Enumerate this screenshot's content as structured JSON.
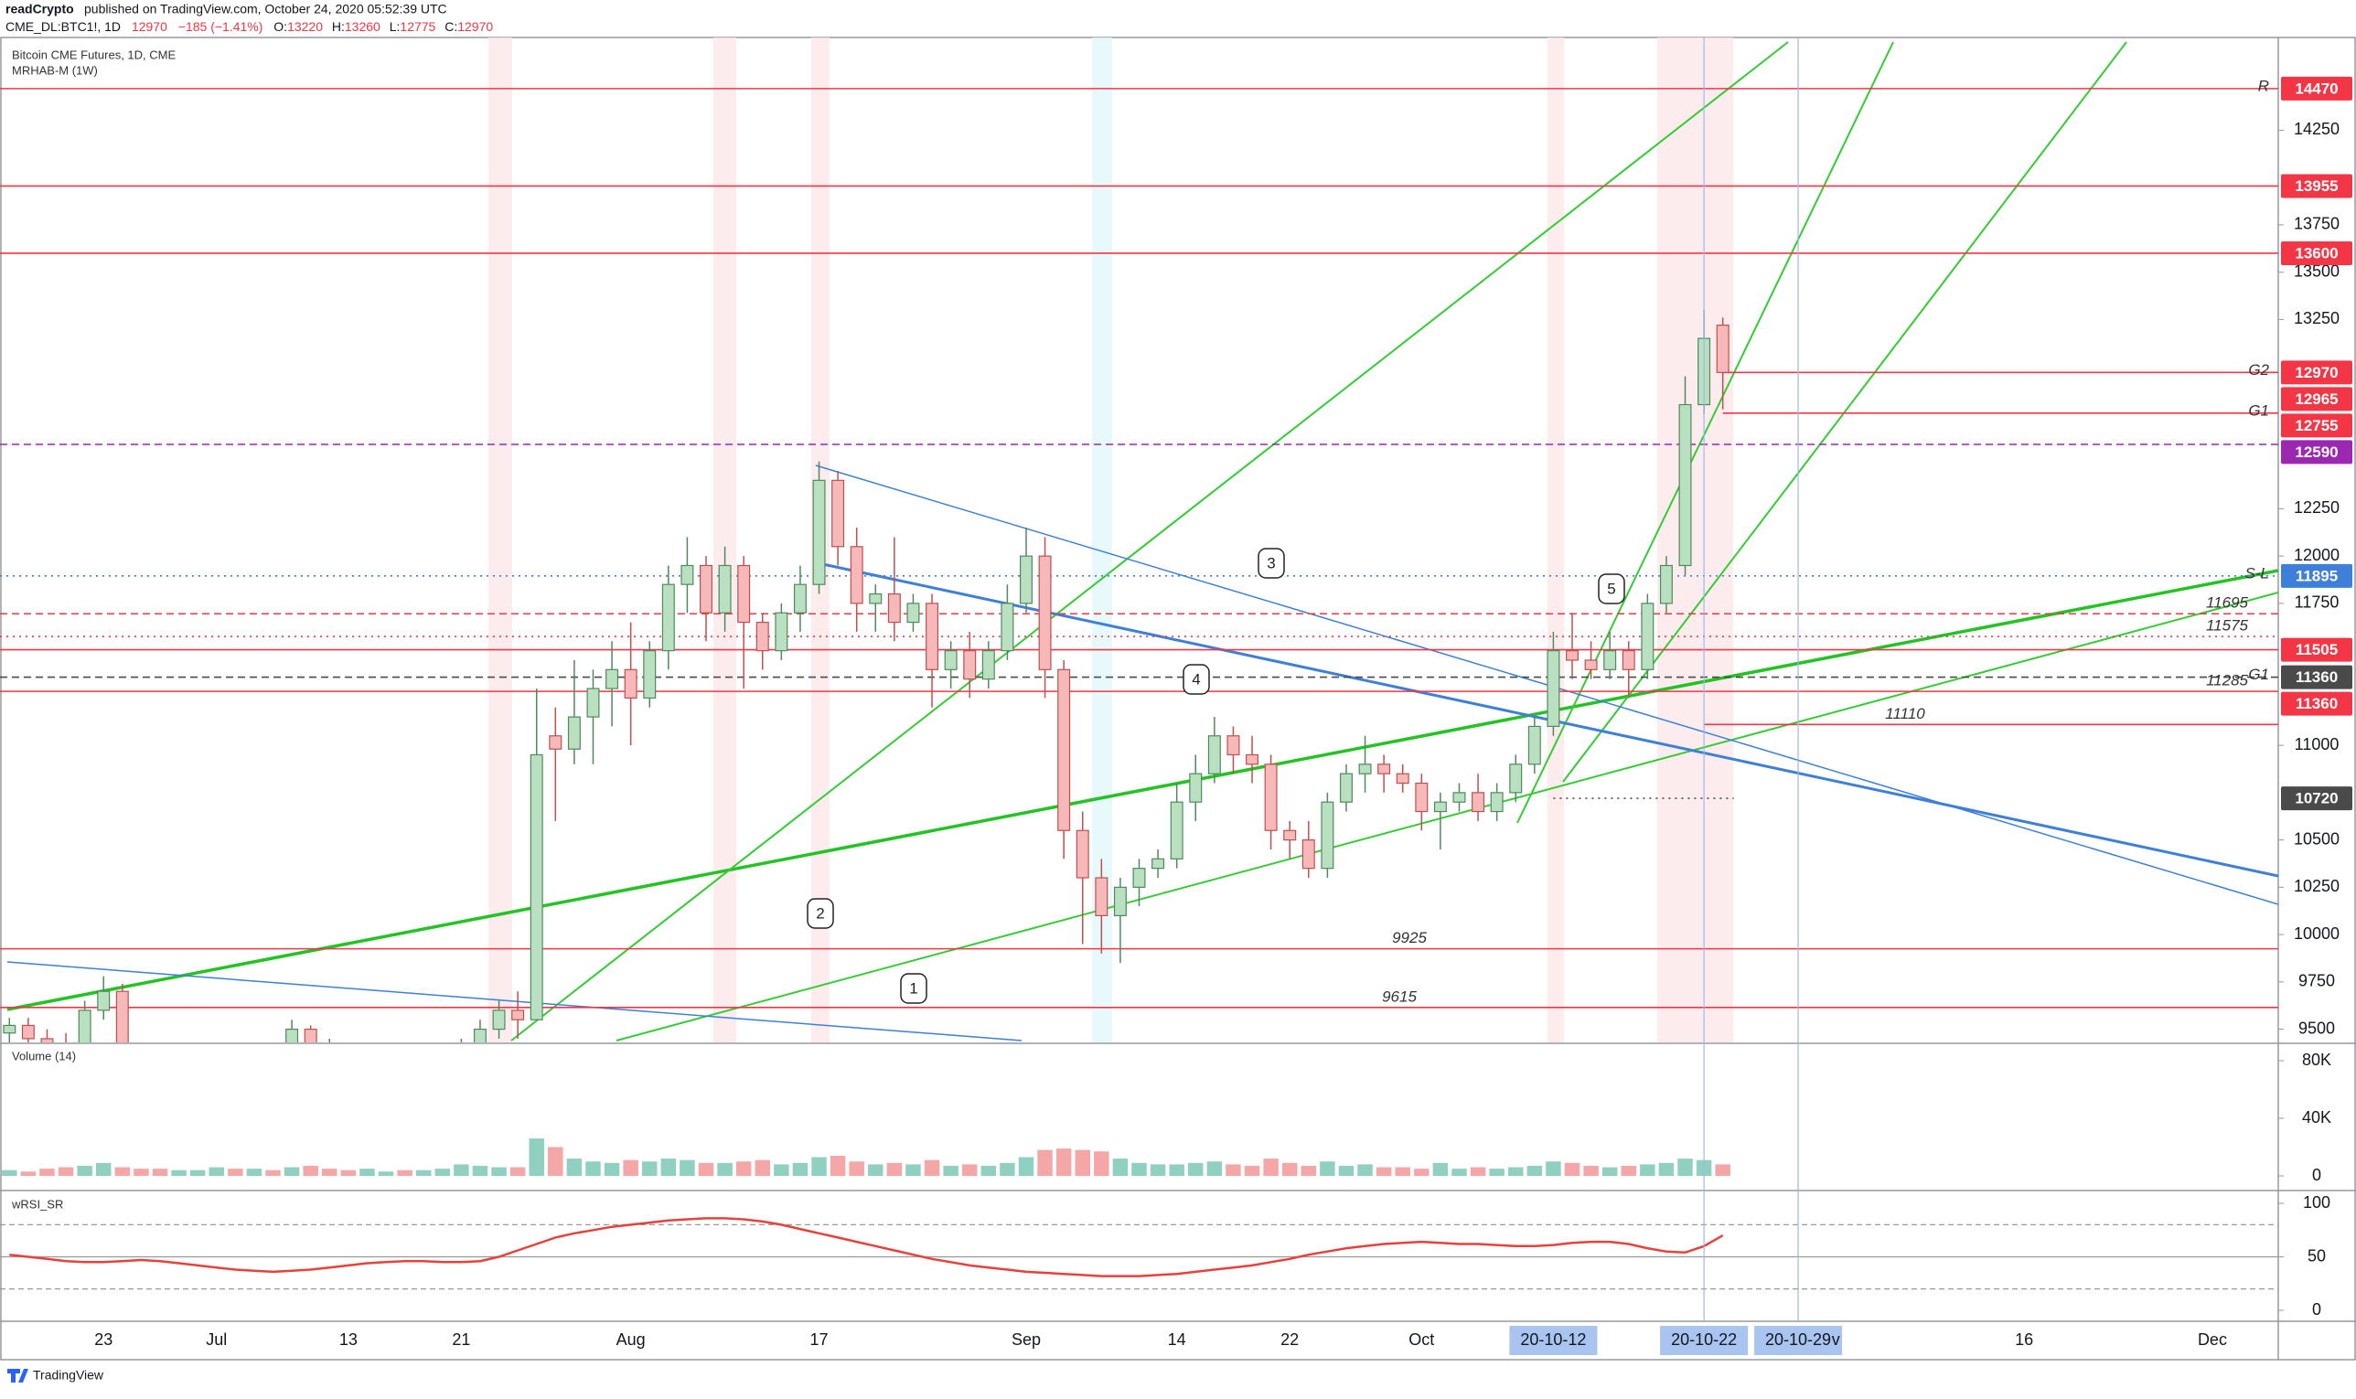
{
  "header": {
    "author": "readCrypto",
    "published": "published on TradingView.com, October 24, 2020 05:52:39 UTC",
    "symbol": "CME_DL:BTC1!, 1D",
    "change": "−185 (−1.41%)",
    "ohlc_prefixes": [
      "O:",
      "H:",
      "L:",
      "C:"
    ]
  },
  "footer": {
    "brand": "TradingView"
  },
  "chart_data": {
    "type": "candlestick",
    "title": "Bitcoin CME Futures, 1D, CME",
    "subtitle": "MRHAB-M (1W)",
    "categories": [
      null,
      null,
      null,
      null,
      null,
      "23",
      null,
      null,
      null,
      null,
      null,
      "Jul",
      null,
      null,
      null,
      null,
      null,
      null,
      "13",
      null,
      null,
      null,
      null,
      null,
      "21",
      null,
      null,
      null,
      null,
      null,
      null,
      null,
      null,
      "Aug",
      null,
      null,
      null,
      null,
      null,
      null,
      null,
      null,
      null,
      "17",
      null,
      null,
      null,
      null,
      null,
      null,
      null,
      null,
      null,
      null,
      "Sep",
      null,
      null,
      null,
      null,
      null,
      null,
      null,
      "14",
      null,
      null,
      null,
      null,
      null,
      "22",
      null,
      null,
      null,
      null,
      null,
      null,
      "Oct",
      null,
      null,
      null,
      null,
      null,
      null,
      "20-10-12",
      null,
      null,
      null,
      null,
      null,
      null,
      null,
      "20-10-22",
      null,
      null,
      null,
      null,
      "20-10-29",
      null,
      "v",
      null,
      null,
      null,
      null,
      null,
      null,
      null,
      null,
      null,
      "16",
      null,
      null,
      null,
      null,
      null,
      null,
      null,
      null,
      null,
      "Dec",
      null,
      null,
      null
    ],
    "open": [
      9480,
      9520,
      9450,
      9400,
      9300,
      9600,
      9700,
      9350,
      9250,
      9100,
      9150,
      9150,
      9200,
      9100,
      9300,
      9300,
      9500,
      9420,
      9300,
      9250,
      9250,
      9280,
      9150,
      9170,
      9200,
      9400,
      9500,
      9600,
      9550,
      11050,
      10980,
      11150,
      11300,
      11400,
      11250,
      11500,
      11850,
      11950,
      11700,
      11950,
      11650,
      11500,
      11700,
      11850,
      12400,
      12050,
      11750,
      11800,
      11650,
      11750,
      11400,
      11500,
      11350,
      11500,
      11750,
      12000,
      11400,
      10550,
      10300,
      10100,
      10250,
      10350,
      10400,
      10700,
      10850,
      11050,
      10950,
      10900,
      10550,
      10500,
      10350,
      10700,
      10850,
      10900,
      10850,
      10800,
      10650,
      10700,
      10750,
      10650,
      10750,
      10900,
      11100,
      11500,
      11450,
      11400,
      11500,
      11400,
      11750,
      11950,
      12800,
      13220,
      null,
      null,
      null,
      null,
      null,
      null,
      null,
      null,
      null,
      null,
      null,
      null,
      null,
      null,
      null,
      null,
      null,
      null,
      null,
      null,
      null,
      null,
      null,
      null,
      null,
      null,
      null,
      null,
      null
    ],
    "high": [
      9560,
      9560,
      9500,
      9480,
      9650,
      9780,
      9740,
      9400,
      9300,
      9200,
      9200,
      9250,
      9250,
      9350,
      9350,
      9550,
      9520,
      9450,
      9350,
      9300,
      9300,
      9300,
      9200,
      9250,
      9450,
      9550,
      9650,
      9700,
      11300,
      11200,
      11450,
      11400,
      11550,
      11650,
      11550,
      11950,
      12100,
      12000,
      12050,
      12000,
      11700,
      11750,
      11950,
      12500,
      12450,
      12150,
      11850,
      12100,
      11800,
      11800,
      11550,
      11600,
      11550,
      11850,
      12150,
      12100,
      11450,
      10650,
      10400,
      10300,
      10400,
      10450,
      10800,
      10950,
      11150,
      11100,
      11050,
      10950,
      10600,
      10600,
      10750,
      10900,
      11050,
      10950,
      10900,
      10850,
      10750,
      10800,
      10850,
      10800,
      10950,
      11150,
      11600,
      11700,
      11550,
      11600,
      11550,
      11800,
      12000,
      12950,
      13300,
      13260,
      null,
      null,
      null,
      null,
      null,
      null,
      null,
      null,
      null,
      null,
      null,
      null,
      null,
      null,
      null,
      null,
      null,
      null,
      null,
      null,
      null,
      null,
      null,
      null,
      null,
      null,
      null,
      null,
      null
    ],
    "low": [
      9420,
      9400,
      9350,
      9250,
      9280,
      9550,
      9300,
      9200,
      9050,
      9050,
      9100,
      9100,
      9050,
      9080,
      9200,
      9280,
      9380,
      9250,
      9200,
      9150,
      9200,
      9100,
      9100,
      9150,
      9180,
      9350,
      9450,
      9450,
      9550,
      10600,
      10900,
      10900,
      11100,
      11000,
      11200,
      11400,
      11700,
      11550,
      11600,
      11300,
      11400,
      11450,
      11600,
      11800,
      11950,
      11600,
      11600,
      11550,
      11600,
      11200,
      11300,
      11250,
      11300,
      11450,
      11700,
      11250,
      10400,
      9950,
      9900,
      9850,
      10150,
      10300,
      10350,
      10600,
      10800,
      10850,
      10800,
      10450,
      10400,
      10300,
      10300,
      10650,
      10750,
      10750,
      10750,
      10550,
      10450,
      10650,
      10600,
      10600,
      10700,
      10850,
      11050,
      11350,
      11350,
      11350,
      11250,
      11350,
      11700,
      11900,
      12750,
      12775,
      null,
      null,
      null,
      null,
      null,
      null,
      null,
      null,
      null,
      null,
      null,
      null,
      null,
      null,
      null,
      null,
      null,
      null,
      null,
      null,
      null,
      null,
      null,
      null,
      null,
      null,
      null,
      null,
      null
    ],
    "close": [
      9520,
      9450,
      9400,
      9300,
      9600,
      9700,
      9350,
      9250,
      9100,
      9150,
      9150,
      9200,
      9100,
      9300,
      9250,
      9500,
      9420,
      9300,
      9250,
      9250,
      9280,
      9150,
      9170,
      9200,
      9400,
      9500,
      9600,
      9550,
      10950,
      10980,
      11150,
      11300,
      11400,
      11250,
      11500,
      11850,
      11950,
      11700,
      11950,
      11650,
      11500,
      11700,
      11850,
      12400,
      12050,
      11750,
      11800,
      11650,
      11750,
      11400,
      11500,
      11350,
      11500,
      11750,
      12000,
      11400,
      10550,
      10300,
      10100,
      10250,
      10350,
      10400,
      10700,
      10850,
      11050,
      10950,
      10900,
      10550,
      10500,
      10350,
      10700,
      10850,
      10900,
      10850,
      10800,
      10650,
      10700,
      10750,
      10650,
      10750,
      10900,
      11100,
      11500,
      11450,
      11400,
      11500,
      11400,
      11750,
      11950,
      12800,
      13150,
      12970,
      null,
      null,
      null,
      null,
      null,
      null,
      null,
      null,
      null,
      null,
      null,
      null,
      null,
      null,
      null,
      null,
      null,
      null,
      null,
      null,
      null,
      null,
      null,
      null,
      null,
      null,
      null,
      null,
      null
    ],
    "up_color": "#b9e0c0",
    "up_border": "#4f8a5a",
    "down_color": "#f6b8b8",
    "down_border": "#c0504d",
    "ylim": [
      9440,
      14740
    ],
    "yticks": [
      9500,
      9750,
      10000,
      10250,
      10500,
      11000,
      11750,
      12000,
      12250,
      13250,
      13500,
      13750,
      14250
    ],
    "levels": [
      {
        "value": 14470,
        "color": "#f23645",
        "style": "solid",
        "box": true,
        "tag": "R"
      },
      {
        "value": 13955,
        "color": "#f23645",
        "style": "solid",
        "box": true
      },
      {
        "value": 13600,
        "color": "#f23645",
        "style": "solid",
        "box": true
      },
      {
        "value": 12970,
        "color": "#f23645",
        "style": "solid",
        "box": true,
        "tag": "G2"
      },
      {
        "value": 12965,
        "color": "#f23645",
        "style": "none",
        "box": true
      },
      {
        "value": 12755,
        "color": "#f23645",
        "style": "solid",
        "box": true,
        "tag": "G1"
      },
      {
        "value": 12590,
        "color": "#9c27b0",
        "style": "dashed",
        "box": true
      },
      {
        "value": 11895,
        "color": "#3d7fd9",
        "style": "dotted",
        "box": true,
        "tag": "S-L"
      },
      {
        "value": 11695,
        "color": "#f23645",
        "style": "dashed",
        "text": true
      },
      {
        "value": 11575,
        "color": "#f23645",
        "style": "dotted",
        "text": true
      },
      {
        "value": 11505,
        "color": "#f23645",
        "style": "solid",
        "box": true
      },
      {
        "value": 11360,
        "color": "#4a4a4a",
        "style": "dashed",
        "box": true,
        "tag": "G1"
      },
      {
        "value": 11285,
        "color": "#f23645",
        "style": "solid",
        "text": true
      },
      {
        "value": 11360,
        "color": "#f23645",
        "style": "none",
        "box": true
      },
      {
        "value": 11110,
        "color": "#f23645",
        "style": "solid",
        "text": true
      },
      {
        "value": 10720,
        "color": "#4a4a4a",
        "style": "dotted",
        "box": true
      },
      {
        "value": 9925,
        "color": "#f23645",
        "style": "solid",
        "text": true
      },
      {
        "value": 9615,
        "color": "#f23645",
        "style": "solid",
        "text": true
      }
    ],
    "annotations": [
      "1",
      "2",
      "3",
      "4",
      "5"
    ],
    "volume": {
      "title": "Volume (14)",
      "up_color": "#8fd0c0",
      "down_color": "#f5a6a6",
      "ylim": [
        0,
        80000
      ],
      "yticks": [
        {
          "value": 80000,
          "label": "80K"
        },
        {
          "value": 40000,
          "label": "40K"
        },
        0
      ],
      "values": [
        4000,
        3000,
        5000,
        6000,
        7000,
        9000,
        6000,
        5000,
        5000,
        4000,
        4000,
        6000,
        5000,
        5000,
        4000,
        6000,
        7000,
        5000,
        4000,
        5000,
        3000,
        4000,
        4000,
        5000,
        8000,
        7000,
        6000,
        6000,
        26000,
        20000,
        12000,
        10000,
        9000,
        11000,
        10000,
        12000,
        11000,
        9000,
        9000,
        10000,
        11000,
        8000,
        9000,
        13000,
        14000,
        10000,
        8000,
        9000,
        8000,
        11000,
        7000,
        8000,
        7000,
        9000,
        13000,
        18000,
        19000,
        18000,
        17000,
        12000,
        9000,
        8000,
        8000,
        9000,
        10000,
        8000,
        7000,
        12000,
        9000,
        7000,
        10000,
        7000,
        8000,
        6000,
        6000,
        5000,
        9000,
        5000,
        6000,
        5000,
        6000,
        7000,
        10000,
        9000,
        7000,
        6000,
        7000,
        8000,
        9000,
        12000,
        11000,
        8000,
        null,
        null,
        null,
        null,
        null,
        null,
        null,
        null,
        null,
        null,
        null,
        null,
        null,
        null,
        null,
        null,
        null,
        null,
        null,
        null,
        null,
        null,
        null,
        null,
        null,
        null,
        null,
        null,
        null
      ]
    },
    "wrsi": {
      "title": "wRSI_SR",
      "color": "#e8413a",
      "ylim": [
        0,
        100
      ],
      "yticks": [
        100,
        50,
        0
      ],
      "guides": [
        80,
        50,
        20
      ],
      "values": [
        52,
        50,
        48,
        46,
        45,
        45,
        46,
        47,
        46,
        44,
        42,
        40,
        38,
        37,
        36,
        37,
        38,
        40,
        42,
        44,
        45,
        46,
        46,
        45,
        45,
        46,
        50,
        56,
        62,
        68,
        72,
        75,
        78,
        80,
        82,
        84,
        85,
        86,
        86,
        85,
        83,
        80,
        76,
        72,
        68,
        64,
        60,
        56,
        52,
        48,
        45,
        42,
        40,
        38,
        36,
        35,
        34,
        33,
        32,
        32,
        32,
        33,
        34,
        36,
        38,
        40,
        42,
        45,
        48,
        52,
        55,
        58,
        60,
        62,
        63,
        64,
        63,
        62,
        62,
        61,
        60,
        60,
        61,
        63,
        64,
        64,
        62,
        58,
        55,
        54,
        60,
        70,
        null,
        null,
        null,
        null,
        null,
        null,
        null,
        null,
        null,
        null,
        null,
        null,
        null,
        null,
        null,
        null,
        null,
        null,
        null,
        null,
        null,
        null,
        null,
        null,
        null,
        null,
        null,
        null,
        null
      ]
    }
  }
}
